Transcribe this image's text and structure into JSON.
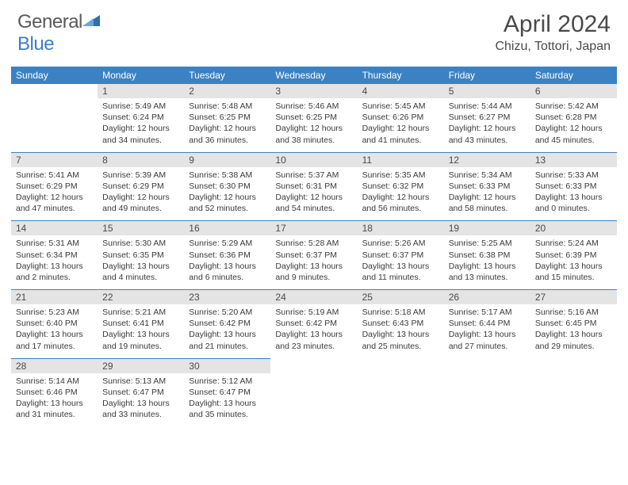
{
  "logo": {
    "text_a": "General",
    "text_b": "Blue"
  },
  "title": "April 2024",
  "location": "Chizu, Tottori, Japan",
  "colors": {
    "header_bg": "#3b82c4",
    "header_text": "#ffffff",
    "daynum_bg": "#e4e4e4",
    "row_divider": "#3b82c4",
    "body_text": "#3a3a3a",
    "title_text": "#4a4a4a",
    "logo_gray": "#5a5a5a",
    "logo_blue": "#3b7fc4"
  },
  "day_names": [
    "Sunday",
    "Monday",
    "Tuesday",
    "Wednesday",
    "Thursday",
    "Friday",
    "Saturday"
  ],
  "weeks": [
    [
      null,
      {
        "n": "1",
        "sunrise": "Sunrise: 5:49 AM",
        "sunset": "Sunset: 6:24 PM",
        "daylight": "Daylight: 12 hours and 34 minutes."
      },
      {
        "n": "2",
        "sunrise": "Sunrise: 5:48 AM",
        "sunset": "Sunset: 6:25 PM",
        "daylight": "Daylight: 12 hours and 36 minutes."
      },
      {
        "n": "3",
        "sunrise": "Sunrise: 5:46 AM",
        "sunset": "Sunset: 6:25 PM",
        "daylight": "Daylight: 12 hours and 38 minutes."
      },
      {
        "n": "4",
        "sunrise": "Sunrise: 5:45 AM",
        "sunset": "Sunset: 6:26 PM",
        "daylight": "Daylight: 12 hours and 41 minutes."
      },
      {
        "n": "5",
        "sunrise": "Sunrise: 5:44 AM",
        "sunset": "Sunset: 6:27 PM",
        "daylight": "Daylight: 12 hours and 43 minutes."
      },
      {
        "n": "6",
        "sunrise": "Sunrise: 5:42 AM",
        "sunset": "Sunset: 6:28 PM",
        "daylight": "Daylight: 12 hours and 45 minutes."
      }
    ],
    [
      {
        "n": "7",
        "sunrise": "Sunrise: 5:41 AM",
        "sunset": "Sunset: 6:29 PM",
        "daylight": "Daylight: 12 hours and 47 minutes."
      },
      {
        "n": "8",
        "sunrise": "Sunrise: 5:39 AM",
        "sunset": "Sunset: 6:29 PM",
        "daylight": "Daylight: 12 hours and 49 minutes."
      },
      {
        "n": "9",
        "sunrise": "Sunrise: 5:38 AM",
        "sunset": "Sunset: 6:30 PM",
        "daylight": "Daylight: 12 hours and 52 minutes."
      },
      {
        "n": "10",
        "sunrise": "Sunrise: 5:37 AM",
        "sunset": "Sunset: 6:31 PM",
        "daylight": "Daylight: 12 hours and 54 minutes."
      },
      {
        "n": "11",
        "sunrise": "Sunrise: 5:35 AM",
        "sunset": "Sunset: 6:32 PM",
        "daylight": "Daylight: 12 hours and 56 minutes."
      },
      {
        "n": "12",
        "sunrise": "Sunrise: 5:34 AM",
        "sunset": "Sunset: 6:33 PM",
        "daylight": "Daylight: 12 hours and 58 minutes."
      },
      {
        "n": "13",
        "sunrise": "Sunrise: 5:33 AM",
        "sunset": "Sunset: 6:33 PM",
        "daylight": "Daylight: 13 hours and 0 minutes."
      }
    ],
    [
      {
        "n": "14",
        "sunrise": "Sunrise: 5:31 AM",
        "sunset": "Sunset: 6:34 PM",
        "daylight": "Daylight: 13 hours and 2 minutes."
      },
      {
        "n": "15",
        "sunrise": "Sunrise: 5:30 AM",
        "sunset": "Sunset: 6:35 PM",
        "daylight": "Daylight: 13 hours and 4 minutes."
      },
      {
        "n": "16",
        "sunrise": "Sunrise: 5:29 AM",
        "sunset": "Sunset: 6:36 PM",
        "daylight": "Daylight: 13 hours and 6 minutes."
      },
      {
        "n": "17",
        "sunrise": "Sunrise: 5:28 AM",
        "sunset": "Sunset: 6:37 PM",
        "daylight": "Daylight: 13 hours and 9 minutes."
      },
      {
        "n": "18",
        "sunrise": "Sunrise: 5:26 AM",
        "sunset": "Sunset: 6:37 PM",
        "daylight": "Daylight: 13 hours and 11 minutes."
      },
      {
        "n": "19",
        "sunrise": "Sunrise: 5:25 AM",
        "sunset": "Sunset: 6:38 PM",
        "daylight": "Daylight: 13 hours and 13 minutes."
      },
      {
        "n": "20",
        "sunrise": "Sunrise: 5:24 AM",
        "sunset": "Sunset: 6:39 PM",
        "daylight": "Daylight: 13 hours and 15 minutes."
      }
    ],
    [
      {
        "n": "21",
        "sunrise": "Sunrise: 5:23 AM",
        "sunset": "Sunset: 6:40 PM",
        "daylight": "Daylight: 13 hours and 17 minutes."
      },
      {
        "n": "22",
        "sunrise": "Sunrise: 5:21 AM",
        "sunset": "Sunset: 6:41 PM",
        "daylight": "Daylight: 13 hours and 19 minutes."
      },
      {
        "n": "23",
        "sunrise": "Sunrise: 5:20 AM",
        "sunset": "Sunset: 6:42 PM",
        "daylight": "Daylight: 13 hours and 21 minutes."
      },
      {
        "n": "24",
        "sunrise": "Sunrise: 5:19 AM",
        "sunset": "Sunset: 6:42 PM",
        "daylight": "Daylight: 13 hours and 23 minutes."
      },
      {
        "n": "25",
        "sunrise": "Sunrise: 5:18 AM",
        "sunset": "Sunset: 6:43 PM",
        "daylight": "Daylight: 13 hours and 25 minutes."
      },
      {
        "n": "26",
        "sunrise": "Sunrise: 5:17 AM",
        "sunset": "Sunset: 6:44 PM",
        "daylight": "Daylight: 13 hours and 27 minutes."
      },
      {
        "n": "27",
        "sunrise": "Sunrise: 5:16 AM",
        "sunset": "Sunset: 6:45 PM",
        "daylight": "Daylight: 13 hours and 29 minutes."
      }
    ],
    [
      {
        "n": "28",
        "sunrise": "Sunrise: 5:14 AM",
        "sunset": "Sunset: 6:46 PM",
        "daylight": "Daylight: 13 hours and 31 minutes."
      },
      {
        "n": "29",
        "sunrise": "Sunrise: 5:13 AM",
        "sunset": "Sunset: 6:47 PM",
        "daylight": "Daylight: 13 hours and 33 minutes."
      },
      {
        "n": "30",
        "sunrise": "Sunrise: 5:12 AM",
        "sunset": "Sunset: 6:47 PM",
        "daylight": "Daylight: 13 hours and 35 minutes."
      },
      null,
      null,
      null,
      null
    ]
  ]
}
